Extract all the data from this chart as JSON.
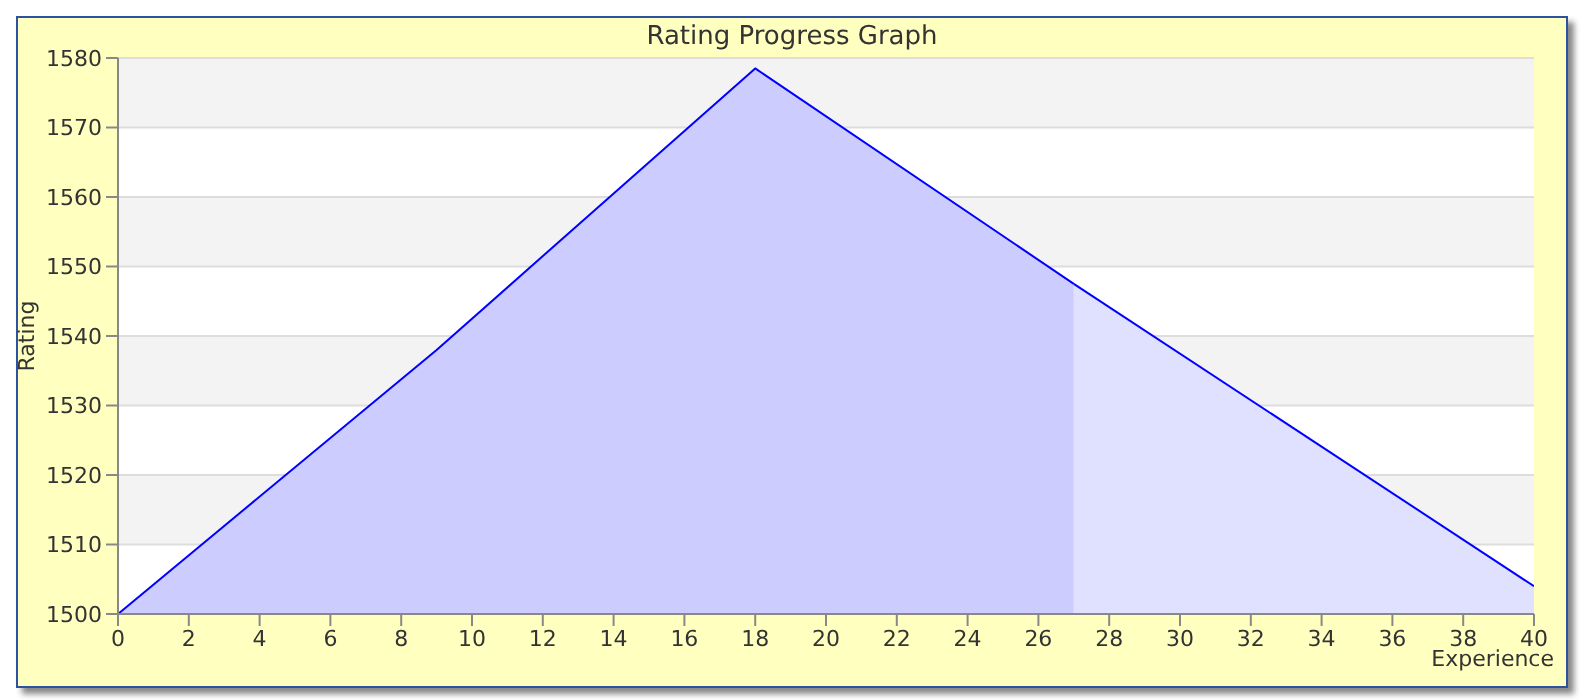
{
  "chart_data": {
    "type": "area",
    "title": "Rating Progress Graph",
    "xlabel": "Experience",
    "ylabel": "Rating",
    "series": [
      {
        "color": "#ccccff",
        "x": [
          0,
          9,
          18,
          27
        ],
        "values": [
          1500,
          1538,
          1578.5,
          1547.5
        ]
      },
      {
        "color": "#e0e0ff",
        "x": [
          27,
          40
        ],
        "values": [
          1547.5,
          1504
        ]
      }
    ],
    "xlim": [
      0,
      40
    ],
    "xticks": [
      0,
      2,
      4,
      6,
      8,
      10,
      12,
      14,
      16,
      18,
      20,
      22,
      24,
      26,
      28,
      30,
      32,
      34,
      36,
      38,
      40
    ],
    "ylim": [
      1500,
      1580
    ],
    "yticks": [
      1500,
      1510,
      1520,
      1530,
      1540,
      1550,
      1560,
      1570,
      1580
    ],
    "grid": "y"
  }
}
